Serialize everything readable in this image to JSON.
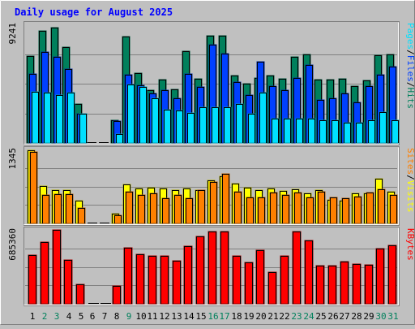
{
  "colors": {
    "background": "#c0c0c0",
    "title": "#0000ff",
    "hits": "#00805c",
    "files": "#0040ff",
    "pages": "#00e0ff",
    "visits": "#ffff00",
    "sites": "#ff8000",
    "kbytes": "#ff0000",
    "weekend_day": "#00805c",
    "weekday": "#000000",
    "separator": "#000000"
  },
  "chart_data": [
    {
      "type": "bar",
      "title": "Daily usage for August 2025",
      "y_max_label": "9241",
      "ylim": [
        0,
        9241
      ],
      "grid": true,
      "categories": [
        "1",
        "2",
        "3",
        "4",
        "5",
        "6",
        "7",
        "8",
        "9",
        "10",
        "11",
        "12",
        "13",
        "14",
        "15",
        "16",
        "17",
        "18",
        "19",
        "20",
        "21",
        "22",
        "23",
        "24",
        "25",
        "26",
        "27",
        "28",
        "29",
        "30",
        "31"
      ],
      "weekend_days": [
        2,
        3,
        9,
        16,
        17,
        23,
        24,
        30,
        31
      ],
      "legend": [
        {
          "label": "Pages",
          "color_key": "pages"
        },
        {
          "label": "/",
          "color_key": "separator"
        },
        {
          "label": "Files",
          "color_key": "files"
        },
        {
          "label": "/",
          "color_key": "separator"
        },
        {
          "label": "Hits",
          "color_key": "hits"
        }
      ],
      "series": [
        {
          "name": "Hits",
          "values": [
            6770,
            8740,
            8960,
            7480,
            3010,
            0,
            0,
            1780,
            8270,
            5470,
            4130,
            4960,
            4200,
            7160,
            5020,
            8380,
            8380,
            5260,
            4610,
            5060,
            5280,
            5030,
            6710,
            6880,
            4960,
            4960,
            5020,
            4400,
            4880,
            6840,
            6880
          ]
        },
        {
          "name": "Files",
          "values": [
            5360,
            7100,
            6710,
            5740,
            2270,
            0,
            0,
            1690,
            5340,
            4480,
            3860,
            4130,
            3480,
            5400,
            4380,
            7660,
            6980,
            4740,
            3710,
            6330,
            4460,
            4110,
            5060,
            6080,
            3370,
            3480,
            3850,
            3140,
            4420,
            5290,
            5970
          ]
        },
        {
          "name": "Pages",
          "values": [
            3990,
            3950,
            3730,
            3920,
            2270,
            0,
            0,
            700,
            4550,
            4390,
            3500,
            2620,
            2560,
            2320,
            2800,
            2790,
            2810,
            3020,
            2280,
            3950,
            1890,
            1890,
            1890,
            1890,
            1750,
            1750,
            1580,
            1590,
            1790,
            2390,
            1800
          ]
        }
      ]
    },
    {
      "type": "bar",
      "y_max_label": "1345",
      "ylim": [
        0,
        1345
      ],
      "grid": true,
      "legend": [
        {
          "label": "Sites",
          "color_key": "sites"
        },
        {
          "label": "/",
          "color_key": "separator"
        },
        {
          "label": "Visits",
          "color_key": "visits"
        }
      ],
      "series": [
        {
          "name": "Visits",
          "values": [
            1330,
            680,
            600,
            600,
            410,
            0,
            0,
            170,
            710,
            640,
            650,
            640,
            610,
            630,
            610,
            790,
            850,
            730,
            650,
            610,
            630,
            590,
            620,
            550,
            610,
            430,
            420,
            540,
            540,
            820,
            580
          ]
        },
        {
          "name": "Sites",
          "values": [
            1300,
            520,
            530,
            530,
            280,
            0,
            0,
            150,
            570,
            520,
            540,
            460,
            520,
            460,
            600,
            750,
            900,
            570,
            480,
            480,
            560,
            510,
            560,
            470,
            580,
            480,
            460,
            490,
            560,
            620,
            510
          ]
        }
      ]
    },
    {
      "type": "bar",
      "y_max_label": "685360",
      "ylim": [
        0,
        685360
      ],
      "grid": true,
      "legend": [
        {
          "label": "KBytes",
          "color_key": "kbytes"
        }
      ],
      "series": [
        {
          "name": "KBytes",
          "values": [
            455000,
            574000,
            685360,
            409000,
            183000,
            0,
            0,
            163000,
            516000,
            463000,
            446000,
            446000,
            400000,
            536000,
            626000,
            669000,
            672000,
            446000,
            383000,
            500000,
            290000,
            446000,
            669000,
            589000,
            352000,
            356000,
            388000,
            367000,
            363000,
            509000,
            545000
          ]
        }
      ]
    }
  ]
}
